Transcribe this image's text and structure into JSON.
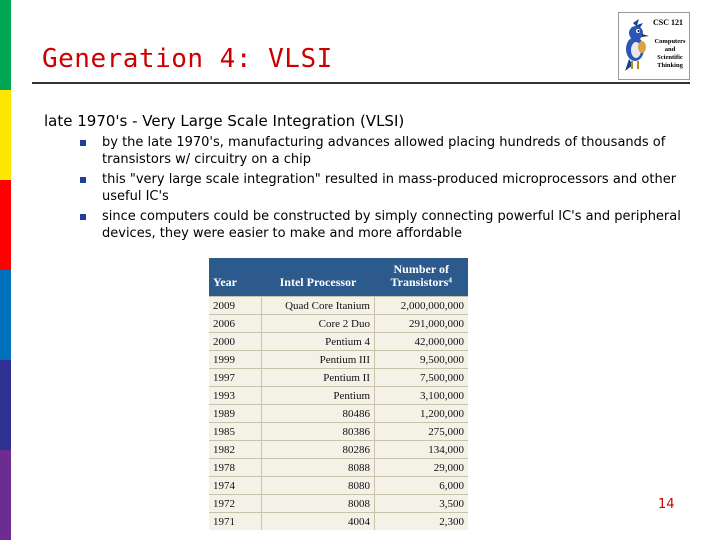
{
  "theme": {
    "stripe_colors": [
      "#00a651",
      "#ffe600",
      "#ff0000",
      "#0072bc",
      "#2e3192",
      "#6c2c90"
    ],
    "title_color": "#cc0000",
    "header_bg": "#2d5a8c",
    "bullet_color": "#1f3d99"
  },
  "slide": {
    "title": "Generation 4: VLSI",
    "main_line": "late 1970's - Very Large Scale Integration (VLSI)",
    "bullets": [
      "by the late 1970's, manufacturing advances allowed placing hundreds of thousands of transistors w/ circuitry on a chip",
      "this \"very large scale integration\" resulted in mass-produced microprocessors and other useful IC's",
      "since computers could be constructed by simply connecting powerful IC's and peripheral devices, they were easier to make and more affordable"
    ],
    "page_number": "14"
  },
  "logo": {
    "course": "CSC 121",
    "dept": "Computers and Scientific Thinking"
  },
  "table": {
    "headers": [
      "Year",
      "Intel Processor",
      "Number of Transistors⁴"
    ],
    "rows": [
      [
        "2009",
        "Quad Core Itanium",
        "2,000,000,000"
      ],
      [
        "2006",
        "Core 2 Duo",
        "291,000,000"
      ],
      [
        "2000",
        "Pentium 4",
        "42,000,000"
      ],
      [
        "1999",
        "Pentium III",
        "9,500,000"
      ],
      [
        "1997",
        "Pentium II",
        "7,500,000"
      ],
      [
        "1993",
        "Pentium",
        "3,100,000"
      ],
      [
        "1989",
        "80486",
        "1,200,000"
      ],
      [
        "1985",
        "80386",
        "275,000"
      ],
      [
        "1982",
        "80286",
        "134,000"
      ],
      [
        "1978",
        "8088",
        "29,000"
      ],
      [
        "1974",
        "8080",
        "6,000"
      ],
      [
        "1972",
        "8008",
        "3,500"
      ],
      [
        "1971",
        "4004",
        "2,300"
      ]
    ]
  }
}
